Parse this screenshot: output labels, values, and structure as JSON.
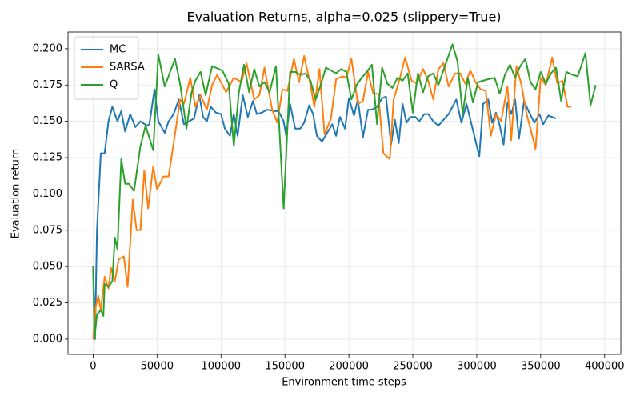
{
  "chart_data": {
    "type": "line",
    "title": "Evaluation Returns, alpha=0.025 (slippery=True)",
    "x_label": "Environment time steps",
    "y_label": "Evaluation return",
    "xlim": [
      -19650,
      412650
    ],
    "ylim": [
      -0.0105,
      0.2115
    ],
    "xticks": [
      0,
      50000,
      100000,
      150000,
      200000,
      250000,
      300000,
      350000,
      400000
    ],
    "yticks": [
      {
        "value": 0,
        "label": "0.000"
      },
      {
        "value": 0.025,
        "label": "0.025"
      },
      {
        "value": 0.05,
        "label": "0.050"
      },
      {
        "value": 0.075,
        "label": "0.075"
      },
      {
        "value": 0.1,
        "label": "0.100"
      },
      {
        "value": 0.125,
        "label": "0.125"
      },
      {
        "value": 0.15,
        "label": "0.150"
      },
      {
        "value": 0.175,
        "label": "0.175"
      },
      {
        "value": 0.2,
        "label": "0.200"
      }
    ],
    "grid": true,
    "legend": "upper left",
    "series": [
      {
        "name": "MC",
        "color": "#1f77b4",
        "x": [
          0,
          1500,
          3000,
          6000,
          9000,
          12000,
          15000,
          19000,
          22000,
          25000,
          29000,
          33000,
          37000,
          42000,
          44000,
          48000,
          51000,
          56000,
          59000,
          63000,
          67000,
          71000,
          75000,
          79000,
          83000,
          86000,
          89000,
          92000,
          96000,
          100000,
          103000,
          107000,
          110000,
          113000,
          117000,
          121000,
          125000,
          128000,
          132000,
          136000,
          142000,
          145000,
          149000,
          151000,
          154000,
          158000,
          162000,
          165000,
          169000,
          172000,
          175000,
          179000,
          183000,
          187000,
          190000,
          193000,
          197000,
          200000,
          204000,
          207000,
          211000,
          215000,
          218000,
          222000,
          226000,
          229000,
          233000,
          236000,
          239000,
          242000,
          245000,
          248000,
          252000,
          255000,
          259000,
          262000,
          266000,
          270000,
          275000,
          278000,
          281000,
          284000,
          288000,
          292000,
          302000,
          305000,
          309000,
          312000,
          315000,
          318000,
          321000,
          324000,
          327000,
          330000,
          333000,
          337000,
          340000,
          345000,
          349000,
          352000,
          356000,
          362000
        ],
        "values": [
          0.05,
          0,
          0.075,
          0.128,
          0.128,
          0.15,
          0.16,
          0.15,
          0.157,
          0.143,
          0.155,
          0.146,
          0.15,
          0.147,
          0.148,
          0.172,
          0.15,
          0.142,
          0.15,
          0.155,
          0.165,
          0.148,
          0.15,
          0.152,
          0.168,
          0.153,
          0.15,
          0.16,
          0.156,
          0.155,
          0.145,
          0.14,
          0.155,
          0.14,
          0.168,
          0.153,
          0.164,
          0.155,
          0.156,
          0.158,
          0.157,
          0.157,
          0.15,
          0.14,
          0.162,
          0.145,
          0.145,
          0.149,
          0.161,
          0.155,
          0.14,
          0.136,
          0.142,
          0.148,
          0.14,
          0.153,
          0.145,
          0.166,
          0.154,
          0.165,
          0.139,
          0.158,
          0.158,
          0.16,
          0.166,
          0.167,
          0.134,
          0.151,
          0.135,
          0.162,
          0.149,
          0.153,
          0.153,
          0.15,
          0.155,
          0.155,
          0.15,
          0.147,
          0.152,
          0.155,
          0.16,
          0.165,
          0.149,
          0.162,
          0.126,
          0.162,
          0.165,
          0.149,
          0.156,
          0.147,
          0.134,
          0.163,
          0.155,
          0.165,
          0.138,
          0.164,
          0.158,
          0.149,
          0.155,
          0.148,
          0.154,
          0.152
        ]
      },
      {
        "name": "SARSA",
        "color": "#ff7f0e",
        "x": [
          0,
          2000,
          4000,
          6000,
          9000,
          12000,
          14000,
          17000,
          20000,
          24000,
          27000,
          31000,
          34000,
          37000,
          40000,
          43000,
          47000,
          50000,
          55000,
          59000,
          63000,
          68000,
          71000,
          76000,
          80000,
          84000,
          89000,
          93000,
          97000,
          104000,
          110000,
          116000,
          120000,
          126000,
          130000,
          134000,
          140000,
          144000,
          148000,
          152000,
          157000,
          161000,
          165000,
          170000,
          173000,
          177000,
          181000,
          186000,
          190000,
          195000,
          198000,
          202000,
          207000,
          211000,
          215000,
          219000,
          223000,
          227000,
          232000,
          235000,
          240000,
          244000,
          249000,
          253000,
          258000,
          262000,
          266000,
          270000,
          274000,
          278000,
          283000,
          287000,
          291000,
          295000,
          299000,
          303000,
          307000,
          311000,
          315000,
          319000,
          324000,
          327000,
          331000,
          335000,
          339000,
          342000,
          346000,
          350000,
          354000,
          359000,
          363000,
          367000,
          371000,
          374000
        ],
        "values": [
          0,
          0.022,
          0.03,
          0.02,
          0.043,
          0.035,
          0.049,
          0.04,
          0.055,
          0.057,
          0.036,
          0.096,
          0.075,
          0.075,
          0.116,
          0.09,
          0.119,
          0.103,
          0.112,
          0.112,
          0.135,
          0.165,
          0.162,
          0.18,
          0.16,
          0.168,
          0.158,
          0.175,
          0.182,
          0.17,
          0.18,
          0.177,
          0.19,
          0.165,
          0.168,
          0.187,
          0.158,
          0.149,
          0.172,
          0.171,
          0.193,
          0.177,
          0.195,
          0.175,
          0.16,
          0.186,
          0.141,
          0.152,
          0.179,
          0.181,
          0.18,
          0.193,
          0.162,
          0.164,
          0.184,
          0.169,
          0.169,
          0.128,
          0.124,
          0.165,
          0.18,
          0.194,
          0.178,
          0.176,
          0.186,
          0.178,
          0.165,
          0.186,
          0.19,
          0.174,
          0.183,
          0.183,
          0.176,
          0.185,
          0.177,
          0.172,
          0.171,
          0.14,
          0.155,
          0.15,
          0.174,
          0.137,
          0.188,
          0.175,
          0.155,
          0.145,
          0.131,
          0.18,
          0.175,
          0.194,
          0.176,
          0.178,
          0.16,
          0.16
        ]
      },
      {
        "name": "Q",
        "color": "#2ca02c",
        "x": [
          0,
          1000,
          3000,
          6000,
          8000,
          9000,
          12000,
          15000,
          17000,
          19000,
          22000,
          25000,
          28000,
          32000,
          37000,
          41000,
          47000,
          51000,
          56000,
          64000,
          68000,
          73000,
          77000,
          80000,
          84000,
          88000,
          93000,
          101000,
          106000,
          110000,
          114000,
          118000,
          122000,
          126000,
          130000,
          134000,
          138000,
          143000,
          149000,
          154000,
          158000,
          162000,
          166000,
          170000,
          174000,
          178000,
          182000,
          190000,
          194000,
          198000,
          202000,
          206000,
          210000,
          214000,
          218000,
          222000,
          226000,
          230000,
          234000,
          238000,
          242000,
          246000,
          250000,
          254000,
          258000,
          262000,
          266000,
          270000,
          281000,
          285000,
          289000,
          293000,
          297000,
          301000,
          309000,
          314000,
          318000,
          322000,
          326000,
          330000,
          334000,
          338000,
          342000,
          346000,
          350000,
          354000,
          358000,
          362000,
          366000,
          370000,
          375000,
          379000,
          385000,
          389000,
          393000
        ],
        "values": [
          0.05,
          0,
          0.017,
          0.02,
          0.016,
          0.038,
          0.036,
          0.04,
          0.07,
          0.062,
          0.124,
          0.107,
          0.107,
          0.102,
          0.133,
          0.147,
          0.13,
          0.196,
          0.174,
          0.193,
          0.176,
          0.145,
          0.17,
          0.178,
          0.184,
          0.168,
          0.188,
          0.185,
          0.176,
          0.133,
          0.17,
          0.189,
          0.17,
          0.186,
          0.174,
          0.177,
          0.17,
          0.188,
          0.09,
          0.184,
          0.184,
          0.182,
          0.183,
          0.178,
          0.165,
          0.175,
          0.187,
          0.183,
          0.186,
          0.184,
          0.165,
          0.175,
          0.18,
          0.184,
          0.189,
          0.148,
          0.187,
          0.176,
          0.173,
          0.18,
          0.178,
          0.183,
          0.156,
          0.183,
          0.17,
          0.181,
          0.183,
          0.175,
          0.203,
          0.191,
          0.155,
          0.18,
          0.163,
          0.177,
          0.179,
          0.18,
          0.169,
          0.182,
          0.189,
          0.18,
          0.188,
          0.193,
          0.177,
          0.172,
          0.184,
          0.176,
          0.183,
          0.187,
          0.164,
          0.184,
          0.182,
          0.181,
          0.197,
          0.161,
          0.175
        ]
      }
    ]
  }
}
